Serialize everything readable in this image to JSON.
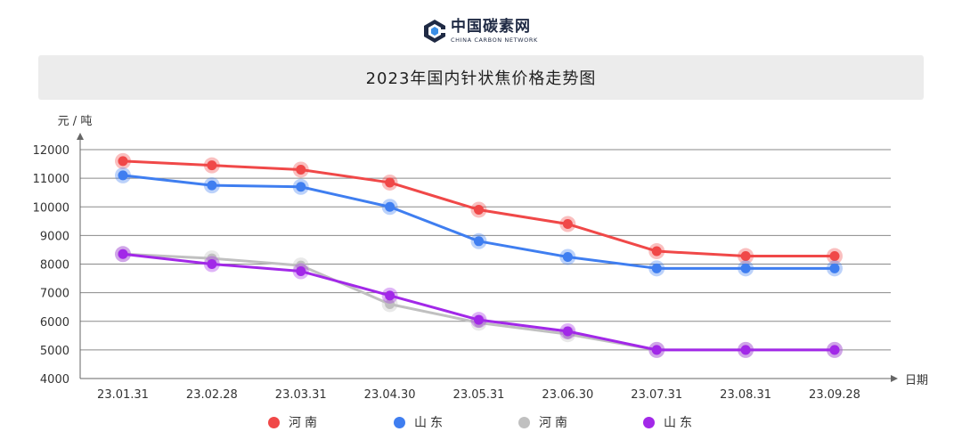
{
  "logo": {
    "name_cn": "中国碳素网",
    "name_en": "CHINA CARBON NETWORK"
  },
  "title": "2023年国内针状焦价格走势图",
  "chart_data": {
    "type": "line",
    "title": "2023年国内针状焦价格走势图",
    "ylabel": "元 / 吨",
    "xlabel": "日期",
    "categories": [
      "23.01.31",
      "23.02.28",
      "23.03.31",
      "23.04.30",
      "23.05.31",
      "23.06.30",
      "23.07.31",
      "23.08.31",
      "23.09.28"
    ],
    "ylim": [
      4000,
      12000
    ],
    "yticks": [
      4000,
      5000,
      6000,
      7000,
      8000,
      9000,
      10000,
      11000,
      12000
    ],
    "grid": true,
    "legend_position": "bottom",
    "series": [
      {
        "name": "河南",
        "color": "#f04848",
        "values": [
          11600,
          11450,
          11300,
          10850,
          9900,
          9400,
          8450,
          8280,
          8280
        ]
      },
      {
        "name": "山东",
        "color": "#3f7ef0",
        "values": [
          11100,
          10750,
          10700,
          10000,
          8800,
          8250,
          7850,
          7850,
          7850
        ]
      },
      {
        "name": "河南",
        "color": "#c0c0c0",
        "values": [
          8350,
          8200,
          7950,
          6600,
          5950,
          5550,
          5000,
          5000,
          5000
        ]
      },
      {
        "name": "山东",
        "color": "#a228e8",
        "values": [
          8350,
          8000,
          7750,
          6900,
          6050,
          5650,
          5000,
          5000,
          5000
        ]
      }
    ]
  }
}
